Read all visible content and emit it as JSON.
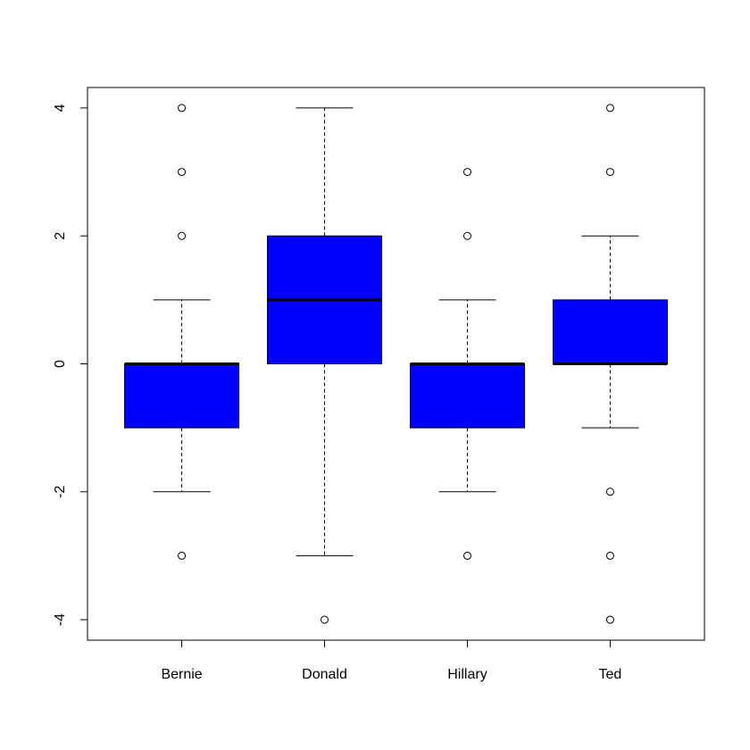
{
  "chart_data": {
    "type": "boxplot",
    "categories": [
      "Bernie",
      "Donald",
      "Hillary",
      "Ted"
    ],
    "boxes": [
      {
        "name": "Bernie",
        "whisker_low": -2,
        "q1": -1,
        "median": 0,
        "q3": 0,
        "whisker_high": 1,
        "outliers": [
          4,
          3,
          2,
          -3
        ]
      },
      {
        "name": "Donald",
        "whisker_low": -3,
        "q1": 0,
        "median": 1,
        "q3": 2,
        "whisker_high": 4,
        "outliers": [
          -4
        ]
      },
      {
        "name": "Hillary",
        "whisker_low": -2,
        "q1": -1,
        "median": 0,
        "q3": 0,
        "whisker_high": 1,
        "outliers": [
          3,
          2,
          -3
        ]
      },
      {
        "name": "Ted",
        "whisker_low": -1,
        "q1": 0,
        "median": 0,
        "q3": 1,
        "whisker_high": 2,
        "outliers": [
          4,
          3,
          -2,
          -3,
          -4
        ]
      }
    ],
    "yticks": [
      -4,
      -2,
      0,
      2,
      4
    ],
    "ylim": [
      -4.32,
      4.32
    ],
    "box_color": "#0000ff",
    "grid": false,
    "title": "",
    "xlabel": "",
    "ylabel": ""
  }
}
